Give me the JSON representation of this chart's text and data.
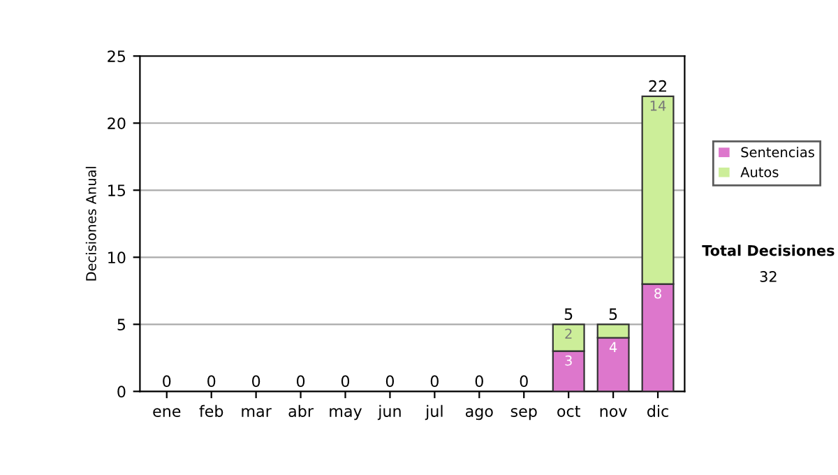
{
  "chart_data": {
    "type": "bar",
    "stacked": true,
    "ylabel": "Decisiones Anual",
    "categories": [
      "ene",
      "feb",
      "mar",
      "abr",
      "may",
      "jun",
      "jul",
      "ago",
      "sep",
      "oct",
      "nov",
      "dic"
    ],
    "series": [
      {
        "name": "Sentencias",
        "color": "#dd77cc",
        "values": [
          0,
          0,
          0,
          0,
          0,
          0,
          0,
          0,
          0,
          3,
          4,
          8
        ],
        "value_labels": [
          null,
          null,
          null,
          null,
          null,
          null,
          null,
          null,
          null,
          "3",
          "4",
          "8"
        ]
      },
      {
        "name": "Autos",
        "color": "#ccee99",
        "values": [
          0,
          0,
          0,
          0,
          0,
          0,
          0,
          0,
          0,
          2,
          1,
          14
        ],
        "value_labels": [
          null,
          null,
          null,
          null,
          null,
          null,
          null,
          null,
          null,
          "2",
          null,
          "14"
        ]
      }
    ],
    "totals": [
      "0",
      "0",
      "0",
      "0",
      "0",
      "0",
      "0",
      "0",
      "0",
      "5",
      "5",
      "22"
    ],
    "ylim": [
      0,
      25
    ],
    "yticks": [
      0,
      5,
      10,
      15,
      20,
      25
    ],
    "grid": "y",
    "legend": "right",
    "annotations": [
      "Total Decisiones",
      "32"
    ]
  }
}
